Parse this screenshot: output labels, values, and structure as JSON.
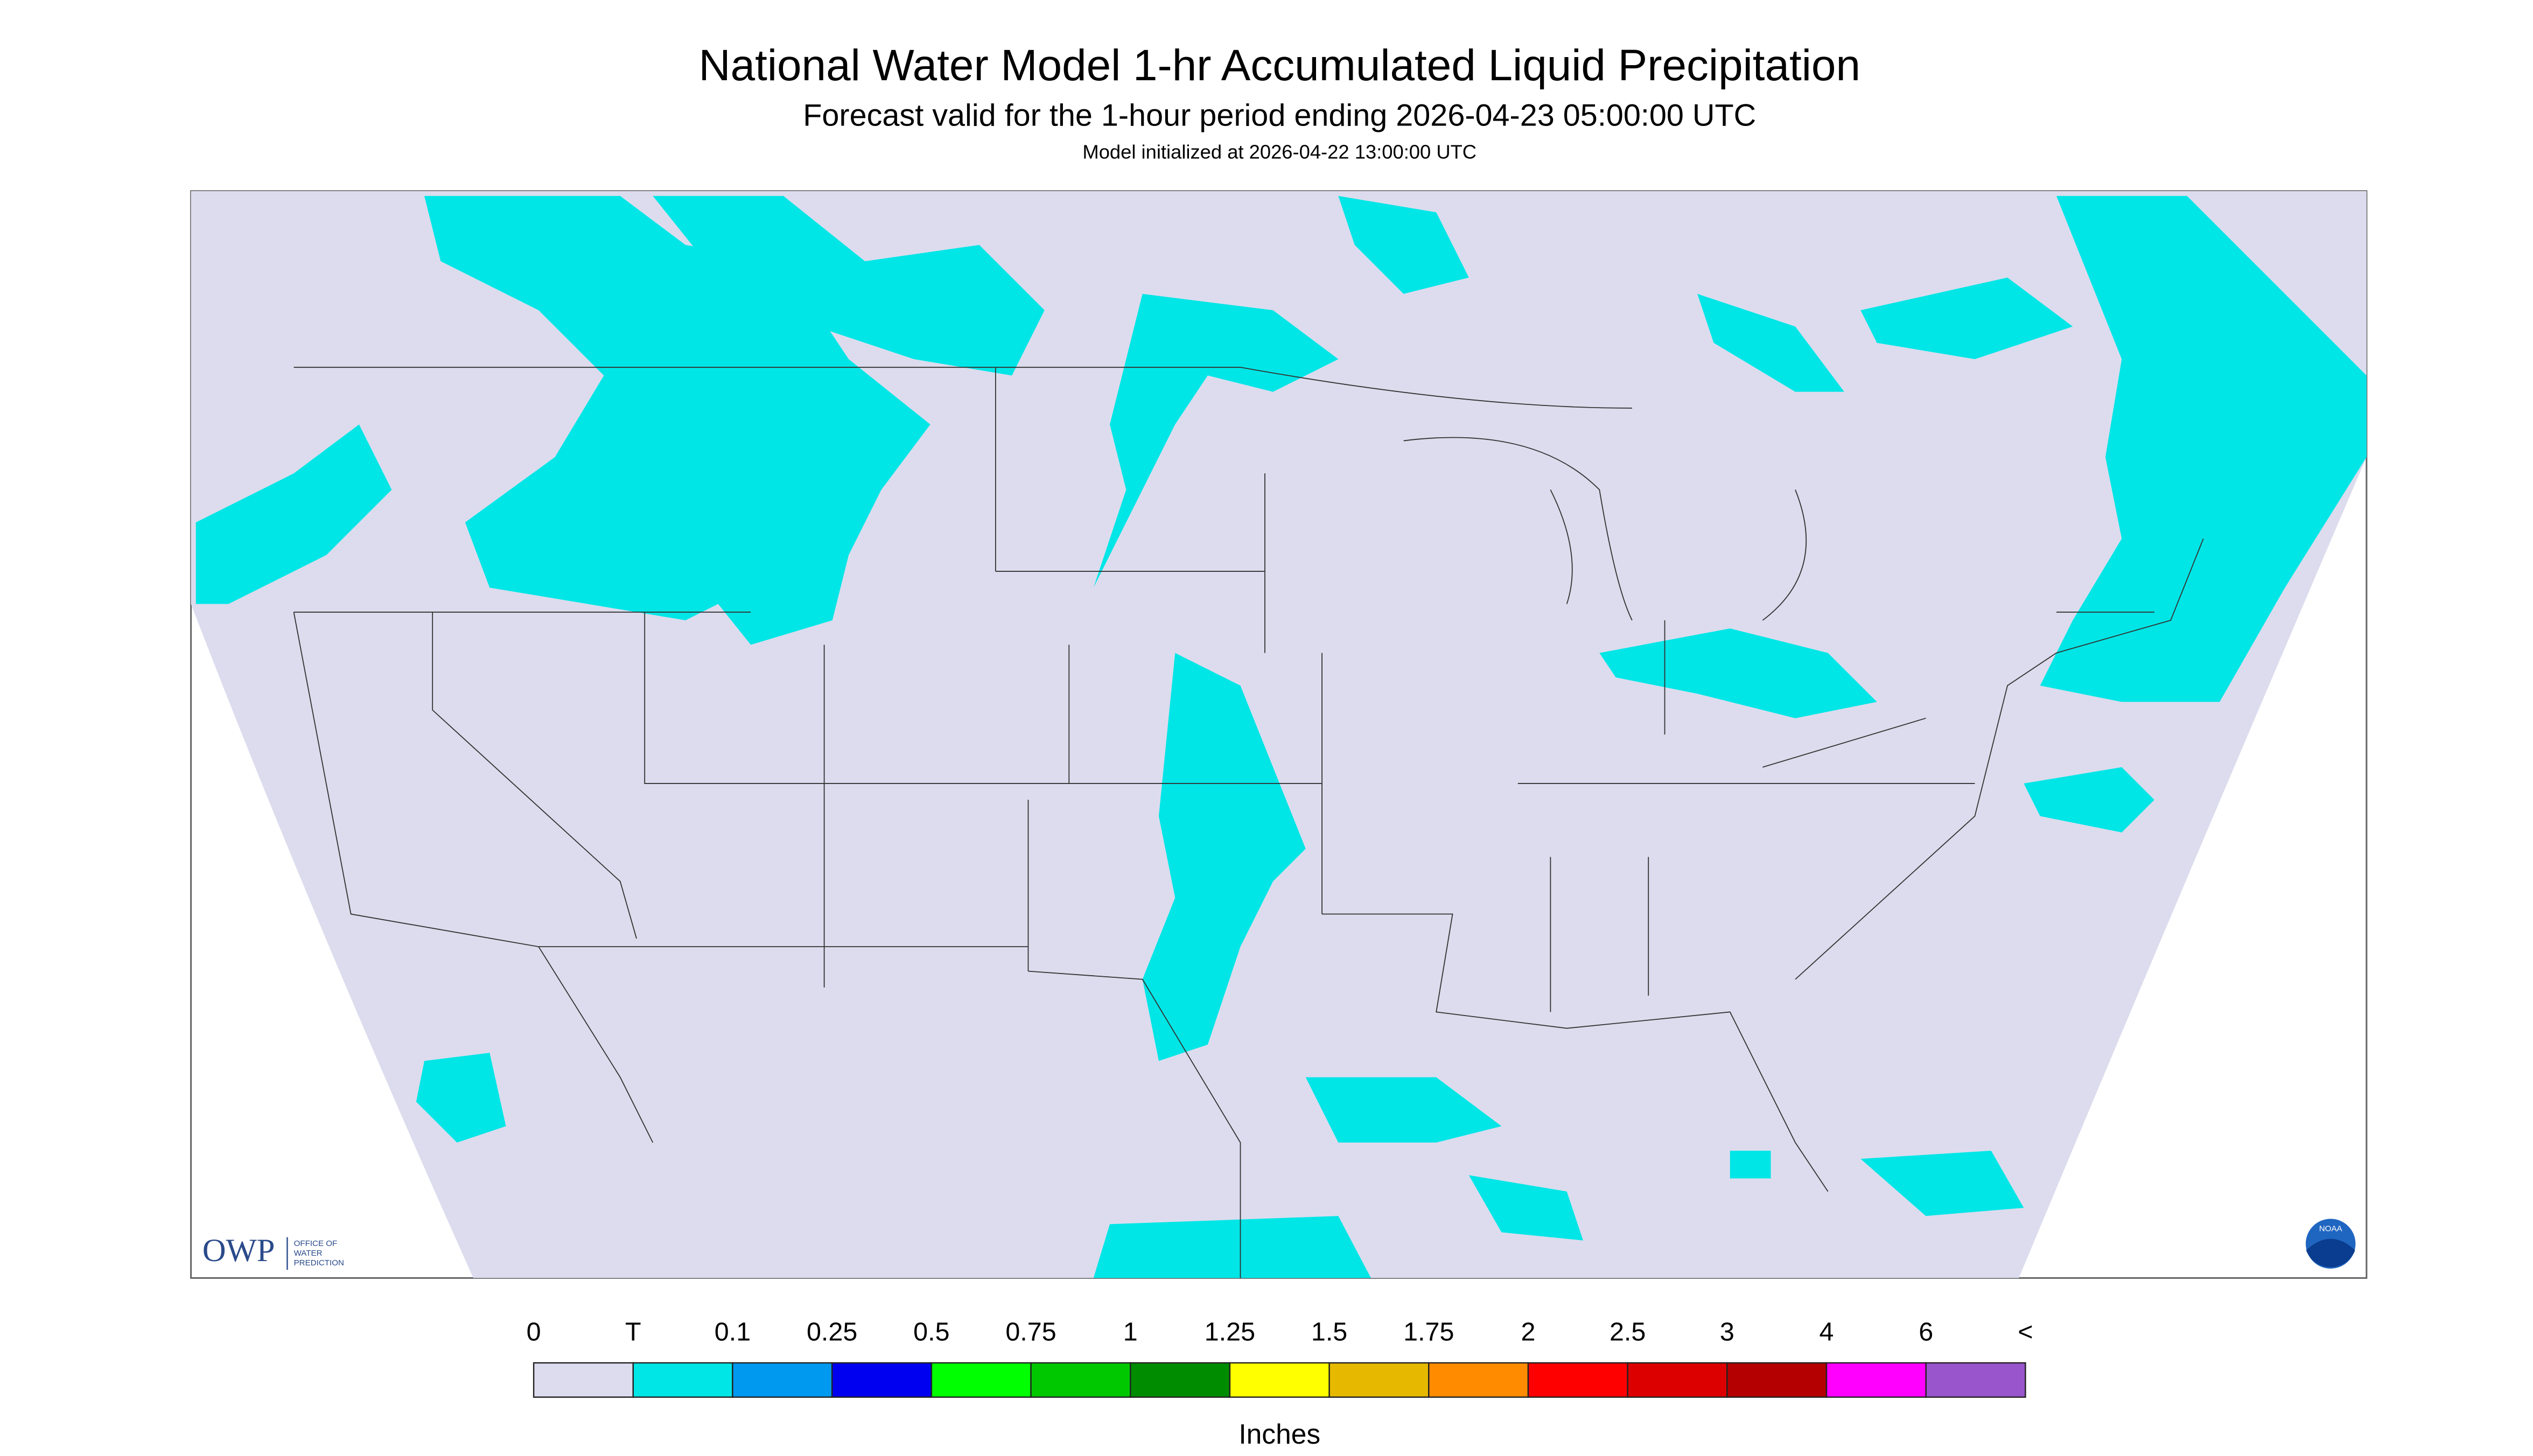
{
  "header": {
    "title": "National Water Model 1-hr Accumulated Liquid Precipitation",
    "subtitle": "Forecast valid for the 1-hour period ending 2026-04-23 05:00:00 UTC",
    "init": "Model initialized at 2026-04-22 13:00:00 UTC"
  },
  "logo": {
    "owp": "OWP",
    "owp_full": [
      "OFFICE OF",
      "WATER",
      "PREDICTION"
    ],
    "noaa": "NOAA"
  },
  "legend": {
    "labels": [
      "0",
      "T",
      "0.1",
      "0.25",
      "0.5",
      "0.75",
      "1",
      "1.25",
      "1.5",
      "1.75",
      "2",
      "2.5",
      "3",
      "4",
      "6",
      "<"
    ],
    "colors": [
      "#dcdcee",
      "#00e6e6",
      "#0099f0",
      "#0000f0",
      "#00ff00",
      "#00c800",
      "#008c00",
      "#ffff00",
      "#e6b800",
      "#ff8c00",
      "#ff0000",
      "#dc0000",
      "#b40000",
      "#ff00ff",
      "#9955cc"
    ],
    "unit": "Inches"
  }
}
